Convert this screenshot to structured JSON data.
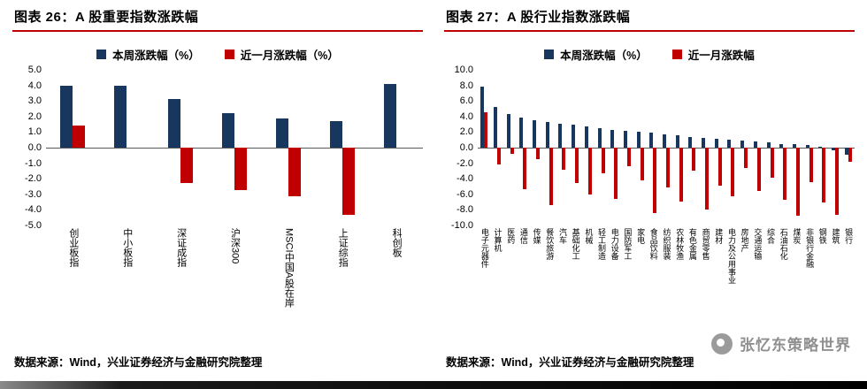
{
  "page": {
    "watermark_text": "张忆东策略世界",
    "colors": {
      "week_blue": "#17375E",
      "month_red": "#C00000",
      "title_rule": "#C00000",
      "watermark_gray": "#8F8F8F"
    }
  },
  "charts": [
    {
      "id": "chart26",
      "title": "图表 26：A 股重要指数涨跌幅",
      "legend": [
        "本周涨跌幅（%）",
        "近一月涨跌幅（%）"
      ],
      "source": "数据来源：Wind，兴业证券经济与金融研究院整理",
      "chart_data": {
        "type": "bar",
        "categories": [
          "创业板指",
          "中小板指",
          "深证成指",
          "沪深300",
          "MSCI中国A股在岸",
          "上证综指",
          "科创板"
        ],
        "series": [
          {
            "name": "本周涨跌幅（%）",
            "color": "#17375E",
            "values": [
              4.0,
              4.0,
              3.1,
              2.2,
              1.9,
              1.7,
              4.1
            ]
          },
          {
            "name": "近一月涨跌幅（%）",
            "color": "#C00000",
            "values": [
              1.4,
              0.0,
              -2.3,
              -2.7,
              -3.1,
              -4.3,
              0.0
            ]
          }
        ],
        "ylim": [
          -5,
          5
        ],
        "ytick_step": 1.0,
        "yticks": [
          "5.0",
          "4.0",
          "3.0",
          "2.0",
          "1.0",
          "0.0",
          "-1.0",
          "-2.0",
          "-3.0",
          "-4.0",
          "-5.0"
        ],
        "grid": false,
        "legend_position": "top"
      }
    },
    {
      "id": "chart27",
      "title": "图表 27：A 股行业指数涨跌幅",
      "legend": [
        "本周涨跌幅（%）",
        "近一月涨跌幅"
      ],
      "source": "数据来源：Wind，兴业证券经济与金融研究院整理",
      "chart_data": {
        "type": "bar",
        "categories": [
          "电子元器件",
          "计算机",
          "医药",
          "通信",
          "传媒",
          "餐饮旅游",
          "汽车",
          "基础化工",
          "机械",
          "轻工制造",
          "电力设备",
          "国防军工",
          "家电",
          "食品饮料",
          "纺织服装",
          "农林牧渔",
          "有色金属",
          "商贸零售",
          "建材",
          "电力及公用事业",
          "房地产",
          "交通运输",
          "综合",
          "石油石化",
          "煤炭",
          "非银行金融",
          "钢铁",
          "建筑",
          "银行"
        ],
        "series": [
          {
            "name": "本周涨跌幅（%）",
            "color": "#17375E",
            "values": [
              7.8,
              5.2,
              4.3,
              3.9,
              3.5,
              3.3,
              3.1,
              2.9,
              2.7,
              2.5,
              2.3,
              2.2,
              2.0,
              1.9,
              1.7,
              1.6,
              1.4,
              1.3,
              1.1,
              1.0,
              0.9,
              0.8,
              0.7,
              0.5,
              0.4,
              0.3,
              0.1,
              -0.3,
              -0.9
            ]
          },
          {
            "name": "近一月涨跌幅",
            "color": "#C00000",
            "values": [
              4.6,
              -2.2,
              -0.8,
              -5.3,
              -1.5,
              -7.4,
              -2.8,
              -4.6,
              -6.0,
              -3.3,
              -6.6,
              -2.4,
              -4.2,
              -8.4,
              -5.1,
              -6.9,
              -3.0,
              -7.9,
              -4.9,
              -6.2,
              -2.6,
              -5.6,
              -3.9,
              -6.7,
              -8.8,
              -4.4,
              -7.1,
              -8.6,
              -1.8
            ]
          }
        ],
        "ylim": [
          -10,
          10
        ],
        "ytick_step": 2.0,
        "yticks": [
          "10.0",
          "8.0",
          "6.0",
          "4.0",
          "2.0",
          "0.0",
          "-2.0",
          "-4.0",
          "-6.0",
          "-8.0",
          "-10.0"
        ],
        "grid": false,
        "legend_position": "top"
      }
    }
  ]
}
